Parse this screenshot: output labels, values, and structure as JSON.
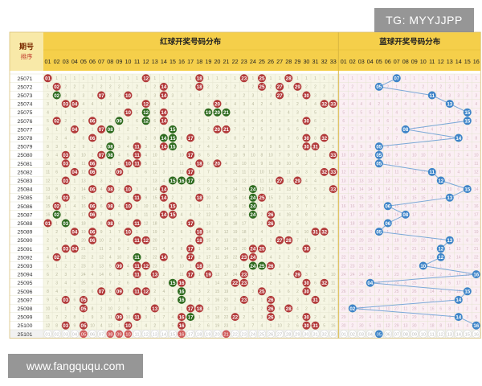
{
  "header": {
    "corner_label": "期号",
    "sort_label": "排序",
    "red_title": "红球开奖号码分布",
    "blue_title": "蓝球开奖号码分布"
  },
  "watermarks": {
    "top": "TG: MYYJJPP",
    "bottom": "www.fangququ.com"
  },
  "colors": {
    "red_ball": "#b23a3a",
    "red_ball_light": "#cf5c5c",
    "green_ball": "#2e6b1f",
    "blue_ball": "#3d84c8",
    "red_area_bg": "#f6f6e4",
    "blue_area_bg": "#fbeff4",
    "header_bg": "#f5cf4a",
    "faint_text_red_area": "#b9b99e",
    "faint_text_blue_area": "#d6b6c2"
  },
  "chart_data": {
    "type": "table",
    "red_columns": [
      "01",
      "02",
      "03",
      "04",
      "05",
      "06",
      "07",
      "08",
      "09",
      "10",
      "11",
      "12",
      "13",
      "14",
      "15",
      "16",
      "17",
      "18",
      "19",
      "20",
      "21",
      "22",
      "23",
      "24",
      "25",
      "26",
      "27",
      "28",
      "29",
      "30",
      "31",
      "32",
      "33"
    ],
    "blue_columns": [
      "01",
      "02",
      "03",
      "04",
      "05",
      "06",
      "07",
      "08",
      "09",
      "10",
      "11",
      "12",
      "13",
      "14",
      "15",
      "16"
    ],
    "periods": [
      "25071",
      "25072",
      "25073",
      "25074",
      "25075",
      "25076",
      "25077",
      "25078",
      "25079",
      "25080",
      "25081",
      "25082",
      "25083",
      "25084",
      "25085",
      "25086",
      "25087",
      "25088",
      "25089",
      "25090",
      "25091",
      "25092",
      "25093",
      "25094",
      "25095",
      "25096",
      "25097",
      "25098",
      "25099",
      "25100",
      "25101"
    ],
    "red_draws": [
      [
        1,
        12,
        18,
        23,
        25,
        28
      ],
      [
        2,
        14,
        18,
        25,
        27,
        29
      ],
      [
        2,
        7,
        10,
        14,
        27,
        30
      ],
      [
        3,
        4,
        12,
        20,
        32,
        33
      ],
      [
        10,
        12,
        14,
        19,
        20,
        21
      ],
      [
        2,
        6,
        9,
        12,
        14,
        30
      ],
      [
        4,
        7,
        8,
        15,
        20,
        21
      ],
      [
        6,
        14,
        15,
        17,
        30,
        32
      ],
      [
        8,
        11,
        14,
        15,
        30,
        31
      ],
      [
        3,
        7,
        8,
        11,
        17,
        33
      ],
      [
        3,
        6,
        10,
        11,
        18,
        20
      ],
      [
        4,
        6,
        9,
        17,
        32,
        33
      ],
      [
        3,
        15,
        16,
        17,
        27,
        29
      ],
      [
        6,
        8,
        10,
        14,
        24,
        33
      ],
      [
        3,
        11,
        14,
        18,
        24,
        25
      ],
      [
        2,
        6,
        8,
        10,
        15,
        24
      ],
      [
        2,
        6,
        14,
        15,
        24,
        26
      ],
      [
        1,
        3,
        8,
        11,
        17,
        26
      ],
      [
        4,
        6,
        10,
        18,
        31,
        32
      ],
      [
        6,
        11,
        12,
        18,
        27,
        28
      ],
      [
        3,
        4,
        17,
        24,
        25,
        30
      ],
      [
        2,
        11,
        14,
        17,
        23,
        24
      ],
      [
        9,
        11,
        12,
        18,
        24,
        25,
        26
      ],
      [
        11,
        13,
        17,
        19,
        23,
        29
      ],
      [
        15,
        16,
        22,
        23,
        30,
        32
      ],
      [
        7,
        9,
        11,
        12,
        16,
        25,
        30
      ],
      [
        3,
        5,
        16,
        23,
        26,
        31
      ],
      [
        5,
        13,
        17,
        18,
        26,
        28
      ],
      [
        9,
        11,
        16,
        17,
        22,
        26,
        30
      ],
      [
        3,
        5,
        10,
        16,
        30,
        31
      ]
    ],
    "red_green_cells": [
      [
        5,
        10
      ],
      [
        5,
        12
      ],
      [
        4,
        12
      ],
      [
        4,
        12
      ],
      [
        5,
        12
      ],
      [
        4,
        12
      ],
      [
        4,
        19
      ],
      [
        4,
        20
      ],
      [
        4,
        21
      ],
      [
        5,
        9
      ],
      [
        6,
        8
      ],
      [
        6,
        15
      ],
      [
        7,
        15
      ],
      [
        7,
        14
      ],
      [
        8,
        15
      ],
      [
        8,
        8
      ],
      [
        9,
        8
      ],
      [
        9,
        15
      ],
      [
        12,
        15
      ],
      [
        12,
        16
      ],
      [
        12,
        17
      ],
      [
        13,
        24
      ],
      [
        14,
        24
      ],
      [
        15,
        24
      ],
      [
        16,
        24
      ],
      [
        2,
        2
      ],
      [
        16,
        2
      ],
      [
        17,
        3
      ],
      [
        17,
        4
      ],
      [
        20,
        11
      ],
      [
        20,
        12
      ],
      [
        21,
        11
      ],
      [
        21,
        13
      ],
      [
        22,
        23
      ],
      [
        22,
        24
      ],
      [
        22,
        25
      ],
      [
        23,
        22
      ],
      [
        24,
        15
      ],
      [
        25,
        16
      ],
      [
        26,
        16
      ],
      [
        26,
        17
      ],
      [
        28,
        17
      ],
      [
        28,
        18
      ],
      [
        29,
        17
      ],
      [
        29,
        18
      ]
    ],
    "blue_draws": [
      7,
      5,
      11,
      13,
      15,
      15,
      8,
      14,
      5,
      5,
      5,
      11,
      12,
      15,
      13,
      6,
      8,
      6,
      5,
      13,
      12,
      12,
      10,
      16,
      4,
      15,
      14,
      2,
      14,
      16
    ],
    "current_period_red": [
      5,
      8,
      9,
      10,
      16,
      21
    ],
    "current_period_blue": 5
  }
}
